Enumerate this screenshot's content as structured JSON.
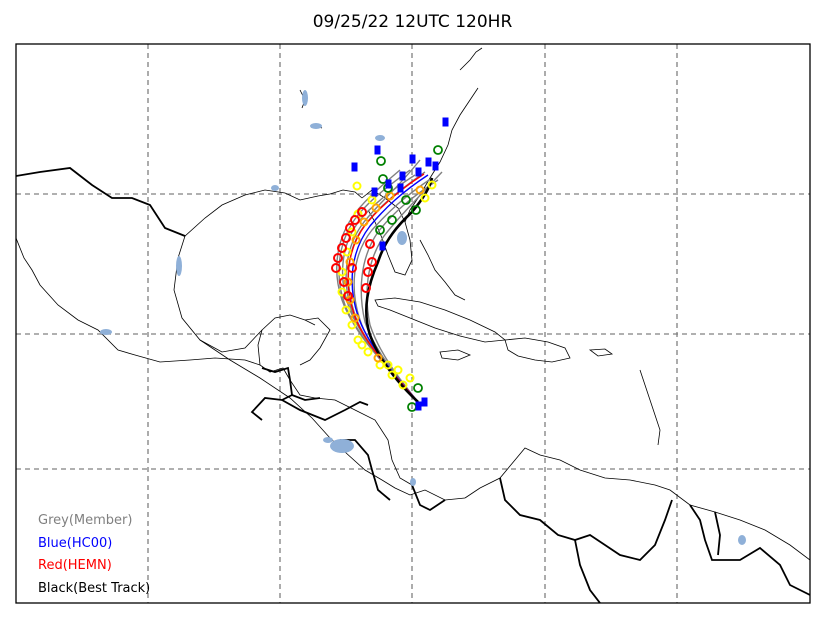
{
  "title": "09/25/22 12UTC 120HR",
  "legend": [
    {
      "label": "Grey(Member)",
      "color": "#808080"
    },
    {
      "label": "Blue(HC00)",
      "color": "#0000ff"
    },
    {
      "label": "Red(HEMN)",
      "color": "#ff0000"
    },
    {
      "label": "Black(Best Track)",
      "color": "#000000"
    }
  ],
  "colors": {
    "grid": "#808080",
    "water": "#8fb0d8",
    "member_track": "#808080",
    "hc00_track": "#0000ff",
    "hemn_track": "#ff0000",
    "best_track": "#000000",
    "member_markers_yellow": "#ffff00",
    "member_markers_green": "#008000",
    "member_markers_orange": "#ffa500"
  }
}
